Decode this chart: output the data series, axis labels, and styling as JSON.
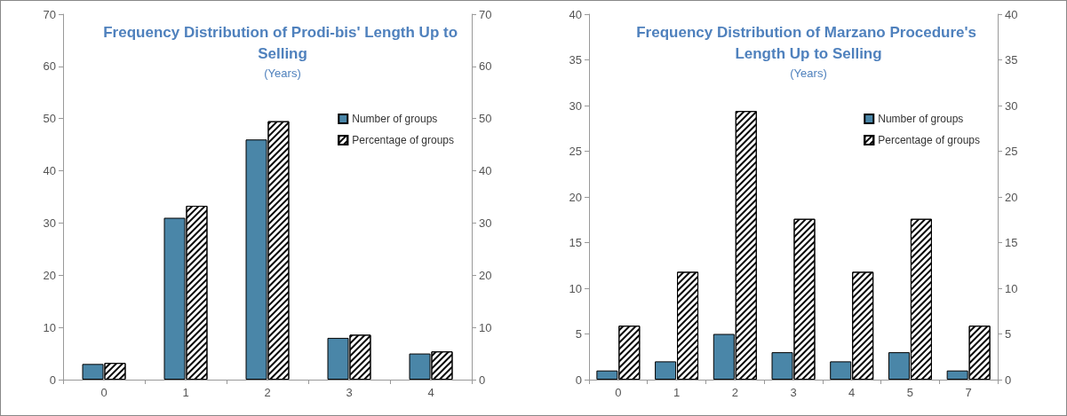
{
  "chart_data": [
    {
      "type": "bar",
      "title": "Frequency Distribution of Prodi-bis' Length Up to Selling",
      "subtitle": "(Years)",
      "categories": [
        "0",
        "1",
        "2",
        "3",
        "4"
      ],
      "series": [
        {
          "name": "Number of groups",
          "color": "#4a86a8",
          "values": [
            3,
            31,
            46,
            8,
            5
          ]
        },
        {
          "name": "Percentage of groups",
          "color": "#ffffff",
          "values": [
            3.2,
            33.3,
            49.5,
            8.6,
            5.4
          ]
        }
      ],
      "ylim": [
        0,
        70
      ],
      "yticks": [
        0,
        10,
        20,
        30,
        40,
        50,
        60,
        70
      ],
      "y2lim": [
        0,
        70
      ],
      "y2ticks": [
        0,
        10,
        20,
        30,
        40,
        50,
        60,
        70
      ],
      "legend": "top right",
      "grid": false
    },
    {
      "type": "bar",
      "title": "Frequency Distribution of Marzano Procedure's Length Up to Selling",
      "subtitle": "(Years)",
      "categories": [
        "0",
        "1",
        "2",
        "3",
        "4",
        "5",
        "7"
      ],
      "series": [
        {
          "name": "Number of groups",
          "color": "#4a86a8",
          "values": [
            1,
            2,
            5,
            3,
            2,
            3,
            1
          ]
        },
        {
          "name": "Percentage of groups",
          "color": "#ffffff",
          "values": [
            5.9,
            11.8,
            29.4,
            17.6,
            11.8,
            17.6,
            5.9
          ]
        }
      ],
      "ylim": [
        0,
        40
      ],
      "yticks": [
        0,
        5,
        10,
        15,
        20,
        25,
        30,
        35,
        40
      ],
      "y2lim": [
        0,
        40
      ],
      "y2ticks": [
        0,
        5,
        10,
        15,
        20,
        25,
        30,
        35,
        40
      ],
      "legend": "top right",
      "grid": false
    }
  ]
}
